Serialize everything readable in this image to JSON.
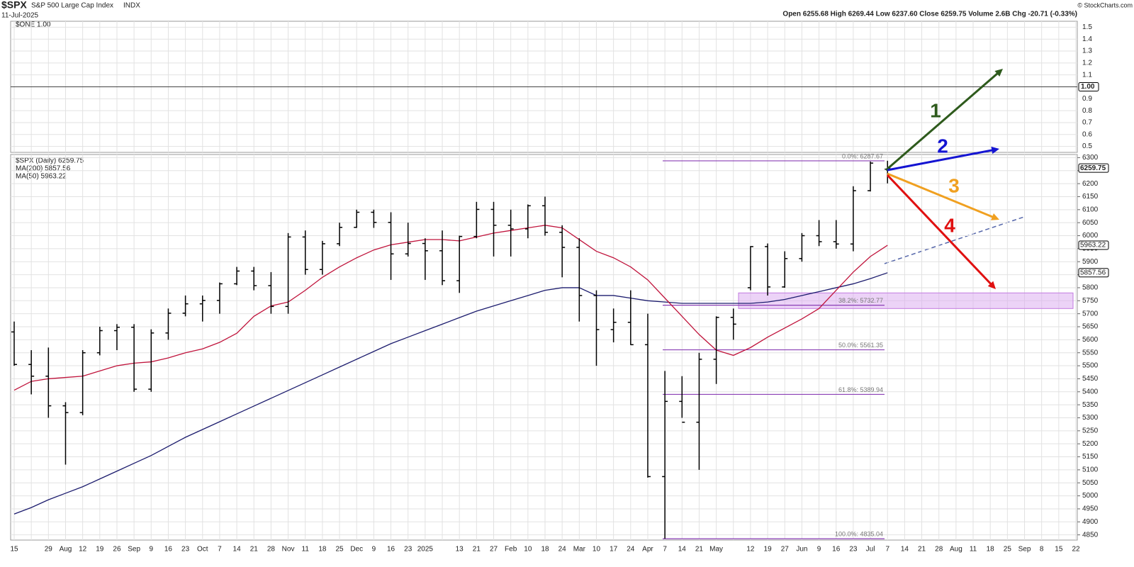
{
  "chart_data": {
    "type": "ohlc",
    "title": "$SPX",
    "subtitle": "S&P 500 Large Cap Index",
    "exchange": "INDX",
    "date": "11-Jul-2025",
    "quote": "Open 6255.68 High 6269.44 Low 6237.60 Close 6259.75 Volume 2.6B Chg -20.71 (-0.33%)",
    "credit": "© StockCharts.com",
    "top_panel": {
      "legend": "$ONE 1.00",
      "ylim": [
        0.45,
        1.55
      ],
      "yticks": [
        0.5,
        0.6,
        0.7,
        0.8,
        0.9,
        1.1,
        1.2,
        1.3,
        1.4,
        1.5
      ],
      "tag": {
        "value": 1,
        "label": "1.00"
      }
    },
    "legend": [
      "$SPX (Daily) 6259.75",
      "MA(200) 5857.56",
      "MA(50) 5963.22"
    ],
    "categories": [
      "15",
      null,
      "29",
      "Aug",
      "12",
      "19",
      "26",
      "Sep",
      "9",
      "16",
      "23",
      "Oct",
      "7",
      "14",
      "21",
      "28",
      "Nov",
      "11",
      "18",
      "25",
      "Dec",
      "9",
      "16",
      "23",
      "2025",
      null,
      "13",
      "21",
      "27",
      "Feb",
      "10",
      "18",
      "24",
      "Mar",
      "10",
      "17",
      "24",
      "Apr",
      "7",
      "14",
      "21",
      "May",
      null,
      "12",
      "19",
      "27",
      "Jun",
      "9",
      "16",
      "23",
      "Jul",
      "7",
      "14",
      "21",
      "28",
      "Aug",
      "11",
      "18",
      "25",
      "Sep",
      "8",
      "15",
      "22"
    ],
    "ohlc": {
      "color": "#000000",
      "open": [
        5630,
        5505,
        5460,
        5346,
        5320,
        5550,
        5635,
        5648,
        5410,
        5626,
        5702,
        5738,
        5751,
        5815,
        5864,
        5808,
        5728,
        5995,
        5870,
        5969,
        6032,
        6090,
        6051,
        5930,
        5970,
        5942,
        5827,
        5997,
        6101,
        6040,
        6026,
        6115,
        6013,
        5955,
        5770,
        5639,
        5667,
        5581,
        5074,
        5363,
        5283,
        5525,
        5686,
        5800,
        5958,
        5803,
        5912,
        6000,
        5977,
        5968,
        6173,
        6255.68,
        null,
        null,
        null,
        null,
        null,
        null,
        null,
        null,
        null,
        null,
        null
      ],
      "high": [
        5670,
        5560,
        5570,
        5360,
        5560,
        5650,
        5660,
        5660,
        5640,
        5720,
        5770,
        5770,
        5820,
        5880,
        5880,
        5860,
        6010,
        6020,
        5980,
        6050,
        6100,
        6100,
        6090,
        6050,
        5990,
        6020,
        6000,
        6130,
        6130,
        6100,
        6120,
        6150,
        6040,
        5990,
        5790,
        5720,
        5790,
        5700,
        5480,
        5460,
        5550,
        5690,
        5720,
        5960,
        5970,
        5940,
        6010,
        6060,
        6060,
        6190,
        6285,
        6288,
        null,
        null,
        null,
        null,
        null,
        null,
        null,
        null,
        null,
        null,
        null
      ],
      "low": [
        5500,
        5390,
        5300,
        5120,
        5310,
        5540,
        5560,
        5400,
        5400,
        5600,
        5690,
        5670,
        5700,
        5810,
        5790,
        5700,
        5700,
        5850,
        5850,
        5960,
        6030,
        6030,
        5830,
        5920,
        5830,
        5810,
        5780,
        5990,
        5920,
        5920,
        5990,
        6000,
        5840,
        5670,
        5500,
        5590,
        5580,
        5070,
        4835,
        5300,
        5100,
        5430,
        5600,
        5790,
        5770,
        5800,
        5900,
        5960,
        5950,
        5940,
        6170,
        6201,
        null,
        null,
        null,
        null,
        null,
        null,
        null,
        null,
        null,
        null,
        null
      ],
      "close": [
        5505,
        5460,
        5346,
        5320,
        5550,
        5635,
        5648,
        5410,
        5626,
        5702,
        5738,
        5751,
        5815,
        5864,
        5808,
        5728,
        5995,
        5870,
        5969,
        6032,
        6090,
        6051,
        5930,
        5970,
        5942,
        5827,
        5997,
        6101,
        6040,
        6026,
        6115,
        6013,
        5955,
        5770,
        5639,
        5667,
        5581,
        5074,
        5363,
        5283,
        5525,
        5686,
        5660,
        5958,
        5803,
        5912,
        6000,
        5977,
        5968,
        6173,
        6279,
        6259.75,
        null,
        null,
        null,
        null,
        null,
        null,
        null,
        null,
        null,
        null,
        null
      ]
    },
    "series": [
      {
        "name": "MA(200)",
        "color": "#1c1c6e",
        "values": [
          4930,
          4955,
          4985,
          5010,
          5035,
          5065,
          5095,
          5125,
          5155,
          5190,
          5225,
          5255,
          5285,
          5315,
          5345,
          5375,
          5405,
          5435,
          5465,
          5495,
          5525,
          5555,
          5585,
          5610,
          5635,
          5660,
          5685,
          5710,
          5730,
          5750,
          5770,
          5790,
          5800,
          5800,
          5770,
          5770,
          5760,
          5750,
          5745,
          5740,
          5740,
          5740,
          5740,
          5740,
          5745,
          5755,
          5770,
          5785,
          5800,
          5815,
          5835,
          5857.56,
          null,
          null,
          null,
          null,
          null,
          null,
          null,
          null,
          null,
          null,
          null
        ]
      },
      {
        "name": "MA(50)",
        "color": "#c0143c",
        "values": [
          5406,
          5440,
          5450,
          5455,
          5460,
          5480,
          5500,
          5510,
          5515,
          5530,
          5550,
          5565,
          5590,
          5625,
          5690,
          5730,
          5745,
          5790,
          5840,
          5880,
          5915,
          5945,
          5965,
          5975,
          5985,
          5985,
          5980,
          5995,
          6010,
          6020,
          6030,
          6040,
          6030,
          5985,
          5940,
          5915,
          5880,
          5830,
          5760,
          5690,
          5620,
          5560,
          5540,
          5570,
          5610,
          5645,
          5680,
          5720,
          5790,
          5860,
          5920,
          5963.22,
          null,
          null,
          null,
          null,
          null,
          null,
          null,
          null,
          null,
          null,
          null
        ]
      }
    ],
    "ylim": [
      4830,
      6312
    ],
    "yticks": [
      4850,
      4900,
      4950,
      5000,
      5050,
      5100,
      5150,
      5200,
      5250,
      5300,
      5350,
      5400,
      5450,
      5500,
      5550,
      5600,
      5650,
      5700,
      5750,
      5800,
      5850,
      5900,
      5950,
      6000,
      6050,
      6100,
      6150,
      6200,
      6250,
      6300
    ],
    "price_tags": [
      {
        "value": 6259.75,
        "label": "6259.75"
      },
      {
        "value": 5963.22,
        "label": "5963.22"
      },
      {
        "value": 5857.56,
        "label": "5857.56"
      }
    ],
    "fib_levels": [
      {
        "value": 6287.67,
        "label": "0.0%: 6287.67"
      },
      {
        "value": 5732.77,
        "label": "38.2%: 5732.77"
      },
      {
        "value": 5561.35,
        "label": "50.0%: 5561.35"
      },
      {
        "value": 5389.94,
        "label": "61.8%: 5389.94"
      },
      {
        "value": 4835.04,
        "label": "100.0%: 4835.04"
      }
    ],
    "zone": [
      5720,
      5780
    ],
    "annotations": [
      {
        "label": "1",
        "color": "#2e5a1c"
      },
      {
        "label": "2",
        "color": "#1414d2"
      },
      {
        "label": "3",
        "color": "#f0a020"
      },
      {
        "label": "4",
        "color": "#e01010"
      }
    ],
    "grid": true
  }
}
